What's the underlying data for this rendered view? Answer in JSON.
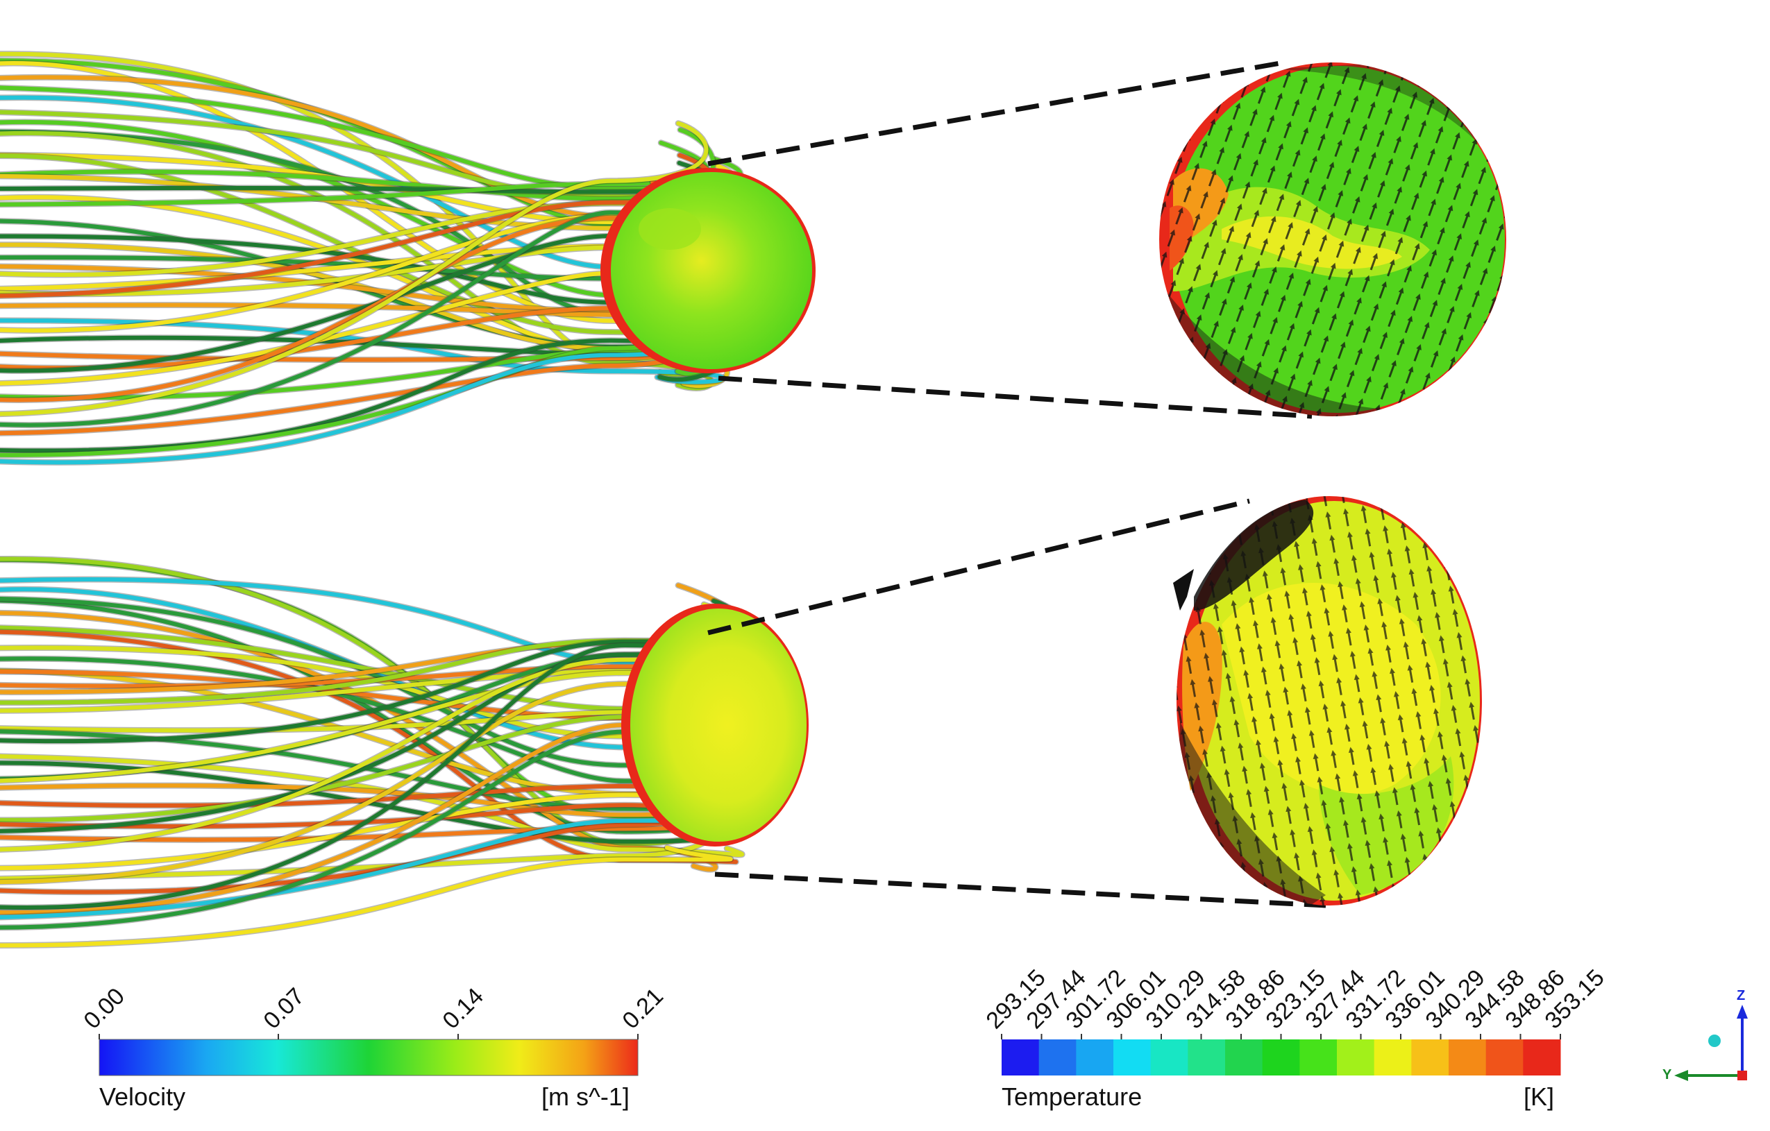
{
  "velocity_legend": {
    "label": "Velocity",
    "unit": "[m s^-1]",
    "ticks": [
      "0.00",
      "0.07",
      "0.14",
      "0.21"
    ]
  },
  "temperature_legend": {
    "label": "Temperature",
    "unit": "[K]",
    "ticks": [
      "293.15",
      "297.44",
      "301.72",
      "306.01",
      "310.29",
      "314.58",
      "318.86",
      "323.15",
      "327.44",
      "331.72",
      "336.01",
      "340.29",
      "344.58",
      "348.86",
      "353.15"
    ],
    "band_colors": [
      "#1c1cf0",
      "#1e72ef",
      "#18a6f2",
      "#12dcf3",
      "#18e6c4",
      "#22e28a",
      "#22d44e",
      "#1ed41e",
      "#46e21a",
      "#a2f01a",
      "#ecf018",
      "#f7c018",
      "#f48a16",
      "#f0541a",
      "#e8281a"
    ]
  },
  "axis_triad": {
    "z": "Z",
    "y": "Y"
  },
  "colors": {
    "low": "#1c1cf0",
    "mid": "#22d44e",
    "high": "#e8281a"
  }
}
